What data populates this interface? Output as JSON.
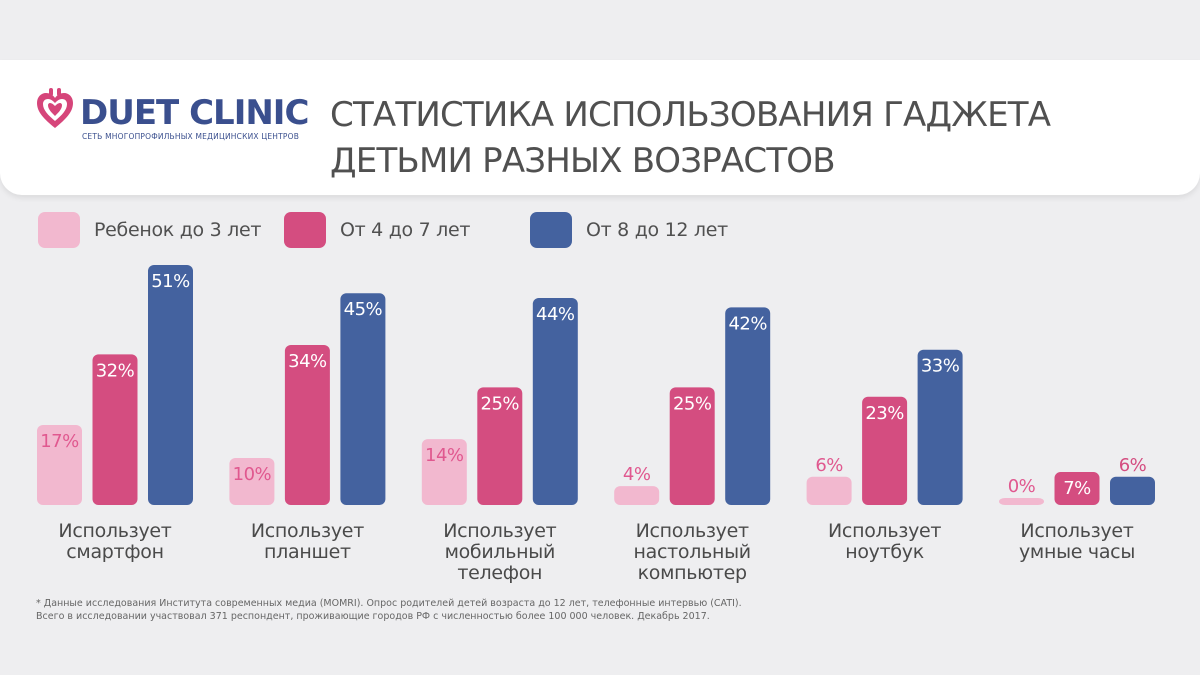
{
  "brand": {
    "name": "DUET CLINIC",
    "tagline": "СЕТЬ МНОГОПРОФИЛЬНЫХ МЕДИЦИНСКИХ ЦЕНТРОВ",
    "color": "#3a4f8e",
    "heart_color": "#d6457a"
  },
  "header": {
    "title_line1": "СТАТИСТИКА ИСПОЛЬЗОВАНИЯ ГАДЖЕТА",
    "title_line2": "ДЕТЬМИ РАЗНЫХ ВОЗРАСТОВ"
  },
  "chart_data": {
    "type": "bar",
    "title": "СТАТИСТИКА ИСПОЛЬЗОВАНИЯ ГАДЖЕТА ДЕТЬМИ РАЗНЫХ ВОЗРАСТОВ",
    "unit": "%",
    "ylim": [
      0,
      51
    ],
    "grid": false,
    "legend_position": "top-left",
    "categories": [
      [
        "Использует",
        "смартфон"
      ],
      [
        "Использует",
        "планшет"
      ],
      [
        "Использует",
        "мобильный",
        "телефон"
      ],
      [
        "Использует",
        "настольный",
        "компьютер"
      ],
      [
        "Использует",
        "ноутбук"
      ],
      [
        "Использует",
        "умные часы"
      ]
    ],
    "series": [
      {
        "name": "Ребенок до 3 лет",
        "color": "#f2b8cf",
        "label_color": "#e0588f",
        "values": [
          17,
          10,
          14,
          4,
          6,
          0
        ]
      },
      {
        "name": "От 4 до 7 лет",
        "color": "#d44d80",
        "label_color": "#ffffff",
        "values": [
          32,
          34,
          25,
          25,
          23,
          7
        ]
      },
      {
        "name": "От 8 до 12 лет",
        "color": "#44629f",
        "label_color": "#ffffff",
        "values": [
          51,
          45,
          44,
          42,
          33,
          6
        ]
      }
    ]
  },
  "footnote": {
    "line1": "* Данные исследования Института современных медиа (MOMRI). Опрос родителей детей возраста до 12 лет, телефонные интервью (CATI).",
    "line2": "Всего в исследовании участвовал 371 респондент, проживающие городов РФ с численностью более 100 000 человек. Декабрь 2017."
  }
}
